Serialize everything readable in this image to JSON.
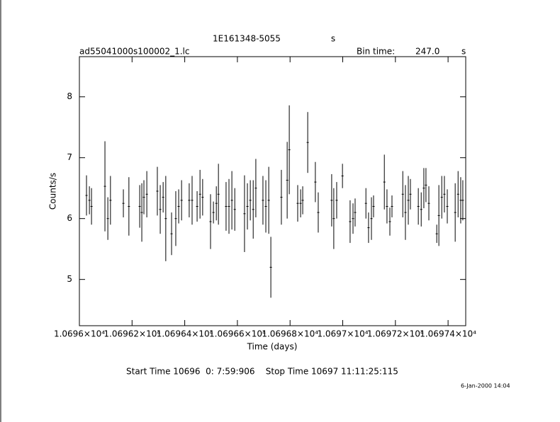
{
  "chart_data": {
    "type": "errorbar",
    "title": "1E161348-5055",
    "title_unit": "s",
    "subtitle": "ad55041000s100002_1.lc",
    "bin_time_label": "Bin time:",
    "bin_time": "247.0",
    "bin_time_unit": "s",
    "xlabel": "Time (days)",
    "ylabel": "Counts/s",
    "footer": "Start Time 10696  0: 7:59:906    Stop Time 10697 11:11:25:115",
    "date": "6-Jan-2000 14:04",
    "color": "#000000",
    "xlim": [
      10696,
      10697.467
    ],
    "ylim": [
      4.24,
      8.66
    ],
    "xticks": [
      {
        "value": 10696,
        "label": "1.0696×10⁴"
      },
      {
        "value": 10696.2,
        "label": "1.06962×10⁴"
      },
      {
        "value": 10696.4,
        "label": "1.06964×10⁴"
      },
      {
        "value": 10696.6,
        "label": "1.06966×10⁴"
      },
      {
        "value": 10696.8,
        "label": "1.06968×10⁴"
      },
      {
        "value": 10697,
        "label": "1.0697×10⁴"
      },
      {
        "value": 10697.2,
        "label": "1.06972×10⁴"
      },
      {
        "value": 10697.4,
        "label": "1.06974×10⁴"
      }
    ],
    "yticks": [
      5,
      6,
      7,
      8
    ],
    "x": [
      10696.027,
      10696.038,
      10696.046,
      10696.097,
      10696.108,
      10696.118,
      10696.167,
      10696.188,
      10696.229,
      10696.237,
      10696.245,
      10696.256,
      10696.296,
      10696.307,
      10696.318,
      10696.328,
      10696.35,
      10696.366,
      10696.377,
      10696.388,
      10696.417,
      10696.428,
      10696.447,
      10696.458,
      10696.468,
      10696.498,
      10696.509,
      10696.52,
      10696.528,
      10696.557,
      10696.568,
      10696.579,
      10696.59,
      10696.627,
      10696.638,
      10696.649,
      10696.66,
      10696.67,
      10696.697,
      10696.708,
      10696.719,
      10696.727,
      10696.767,
      10696.789,
      10696.797,
      10696.829,
      10696.84,
      10696.848,
      10696.867,
      10696.896,
      10696.907,
      10696.958,
      10696.966,
      10696.977,
      10696.999,
      10697.028,
      10697.039,
      10697.047,
      10697.088,
      10697.098,
      10697.109,
      10697.117,
      10697.158,
      10697.168,
      10697.179,
      10697.187,
      10697.228,
      10697.238,
      10697.249,
      10697.257,
      10697.287,
      10697.298,
      10697.308,
      10697.316,
      10697.327,
      10697.357,
      10697.365,
      10697.376,
      10697.386,
      10697.397,
      10697.427,
      10697.438,
      10697.448,
      10697.456
    ],
    "values": [
      6.38,
      6.3,
      6.2,
      6.53,
      6.0,
      6.3,
      6.25,
      6.2,
      6.2,
      6.1,
      6.35,
      6.4,
      6.45,
      6.15,
      6.35,
      6.0,
      5.75,
      6.0,
      6.2,
      6.3,
      6.3,
      6.3,
      6.2,
      6.4,
      6.35,
      5.95,
      6.1,
      6.25,
      6.4,
      6.2,
      6.2,
      6.3,
      6.15,
      6.08,
      6.2,
      6.3,
      6.15,
      6.5,
      6.3,
      6.2,
      6.3,
      5.2,
      6.35,
      6.63,
      7.13,
      6.25,
      6.25,
      6.3,
      7.25,
      6.6,
      6.1,
      6.3,
      6.0,
      6.3,
      6.7,
      5.95,
      6.0,
      6.1,
      6.25,
      5.85,
      6.0,
      6.2,
      6.6,
      6.2,
      5.95,
      6.2,
      6.4,
      6.1,
      6.3,
      6.4,
      6.2,
      6.15,
      6.5,
      6.55,
      6.25,
      5.75,
      6.05,
      6.35,
      6.4,
      6.2,
      6.1,
      6.4,
      6.3,
      6.3
    ],
    "errors": [
      0.33,
      0.23,
      0.3,
      0.74,
      0.35,
      0.4,
      0.23,
      0.48,
      0.35,
      0.48,
      0.28,
      0.38,
      0.4,
      0.4,
      0.25,
      0.7,
      0.35,
      0.45,
      0.28,
      0.33,
      0.28,
      0.4,
      0.25,
      0.4,
      0.3,
      0.45,
      0.18,
      0.28,
      0.5,
      0.4,
      0.45,
      0.48,
      0.35,
      0.63,
      0.38,
      0.33,
      0.48,
      0.48,
      0.4,
      0.43,
      0.55,
      0.5,
      0.45,
      0.63,
      0.73,
      0.3,
      0.23,
      0.23,
      0.5,
      0.33,
      0.33,
      0.43,
      0.5,
      0.3,
      0.2,
      0.35,
      0.25,
      0.23,
      0.25,
      0.25,
      0.35,
      0.18,
      0.45,
      0.28,
      0.23,
      0.18,
      0.38,
      0.45,
      0.4,
      0.25,
      0.3,
      0.28,
      0.33,
      0.28,
      0.28,
      0.15,
      0.5,
      0.35,
      0.3,
      0.28,
      0.48,
      0.38,
      0.38,
      0.33
    ]
  }
}
